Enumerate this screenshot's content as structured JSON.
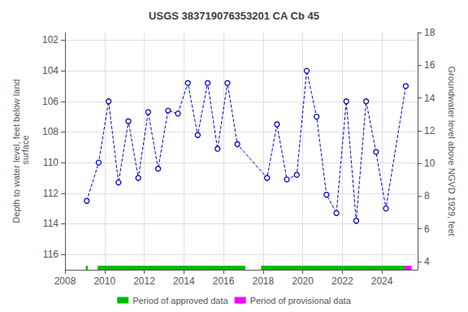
{
  "chart_data": {
    "type": "line",
    "title": "USGS 383719076353201 CA Cb 45",
    "ylabel": "Depth to water level, feet below land\n surface",
    "y2label": "Groundwater level above NGVD 1929, feet",
    "x": [
      2009.1,
      2009.7,
      2010.2,
      2010.7,
      2011.2,
      2011.7,
      2012.2,
      2012.7,
      2013.2,
      2013.7,
      2014.2,
      2014.7,
      2015.2,
      2015.7,
      2016.2,
      2016.7,
      2018.2,
      2018.7,
      2019.2,
      2019.7,
      2020.2,
      2020.7,
      2021.2,
      2021.7,
      2022.2,
      2022.7,
      2023.2,
      2023.7,
      2024.2,
      2025.2
    ],
    "values": [
      112.5,
      110.0,
      106.0,
      111.3,
      107.3,
      111.0,
      106.7,
      110.4,
      106.6,
      106.8,
      104.8,
      108.2,
      104.8,
      109.1,
      104.8,
      108.8,
      111.0,
      107.5,
      111.1,
      110.8,
      104.0,
      107.0,
      112.1,
      113.3,
      106.0,
      113.8,
      106.0,
      109.3,
      113.0,
      105.0
    ],
    "color": "#0000cc",
    "line_style": "dashed",
    "marker": "circle",
    "xlim": [
      2008.0,
      2025.8
    ],
    "xticks": [
      2008,
      2010,
      2012,
      2014,
      2016,
      2018,
      2020,
      2022,
      2024
    ],
    "ylim": [
      117.0,
      101.5
    ],
    "yticks": [
      102,
      104,
      106,
      108,
      110,
      112,
      114,
      116
    ],
    "y2lim": [
      3.5,
      18.0
    ],
    "y2ticks": [
      4,
      6,
      8,
      10,
      12,
      14,
      16,
      18
    ],
    "grid": true,
    "legend": "bottom",
    "periods": [
      {
        "name": "Period of approved data",
        "color": "#00bb00",
        "ranges": [
          [
            2009.05,
            2009.15
          ],
          [
            2009.65,
            2017.1
          ],
          [
            2017.9,
            2025.15
          ]
        ]
      },
      {
        "name": "Period of provisional data",
        "color": "#ff00ff",
        "ranges": [
          [
            2025.15,
            2025.5
          ]
        ]
      }
    ]
  }
}
